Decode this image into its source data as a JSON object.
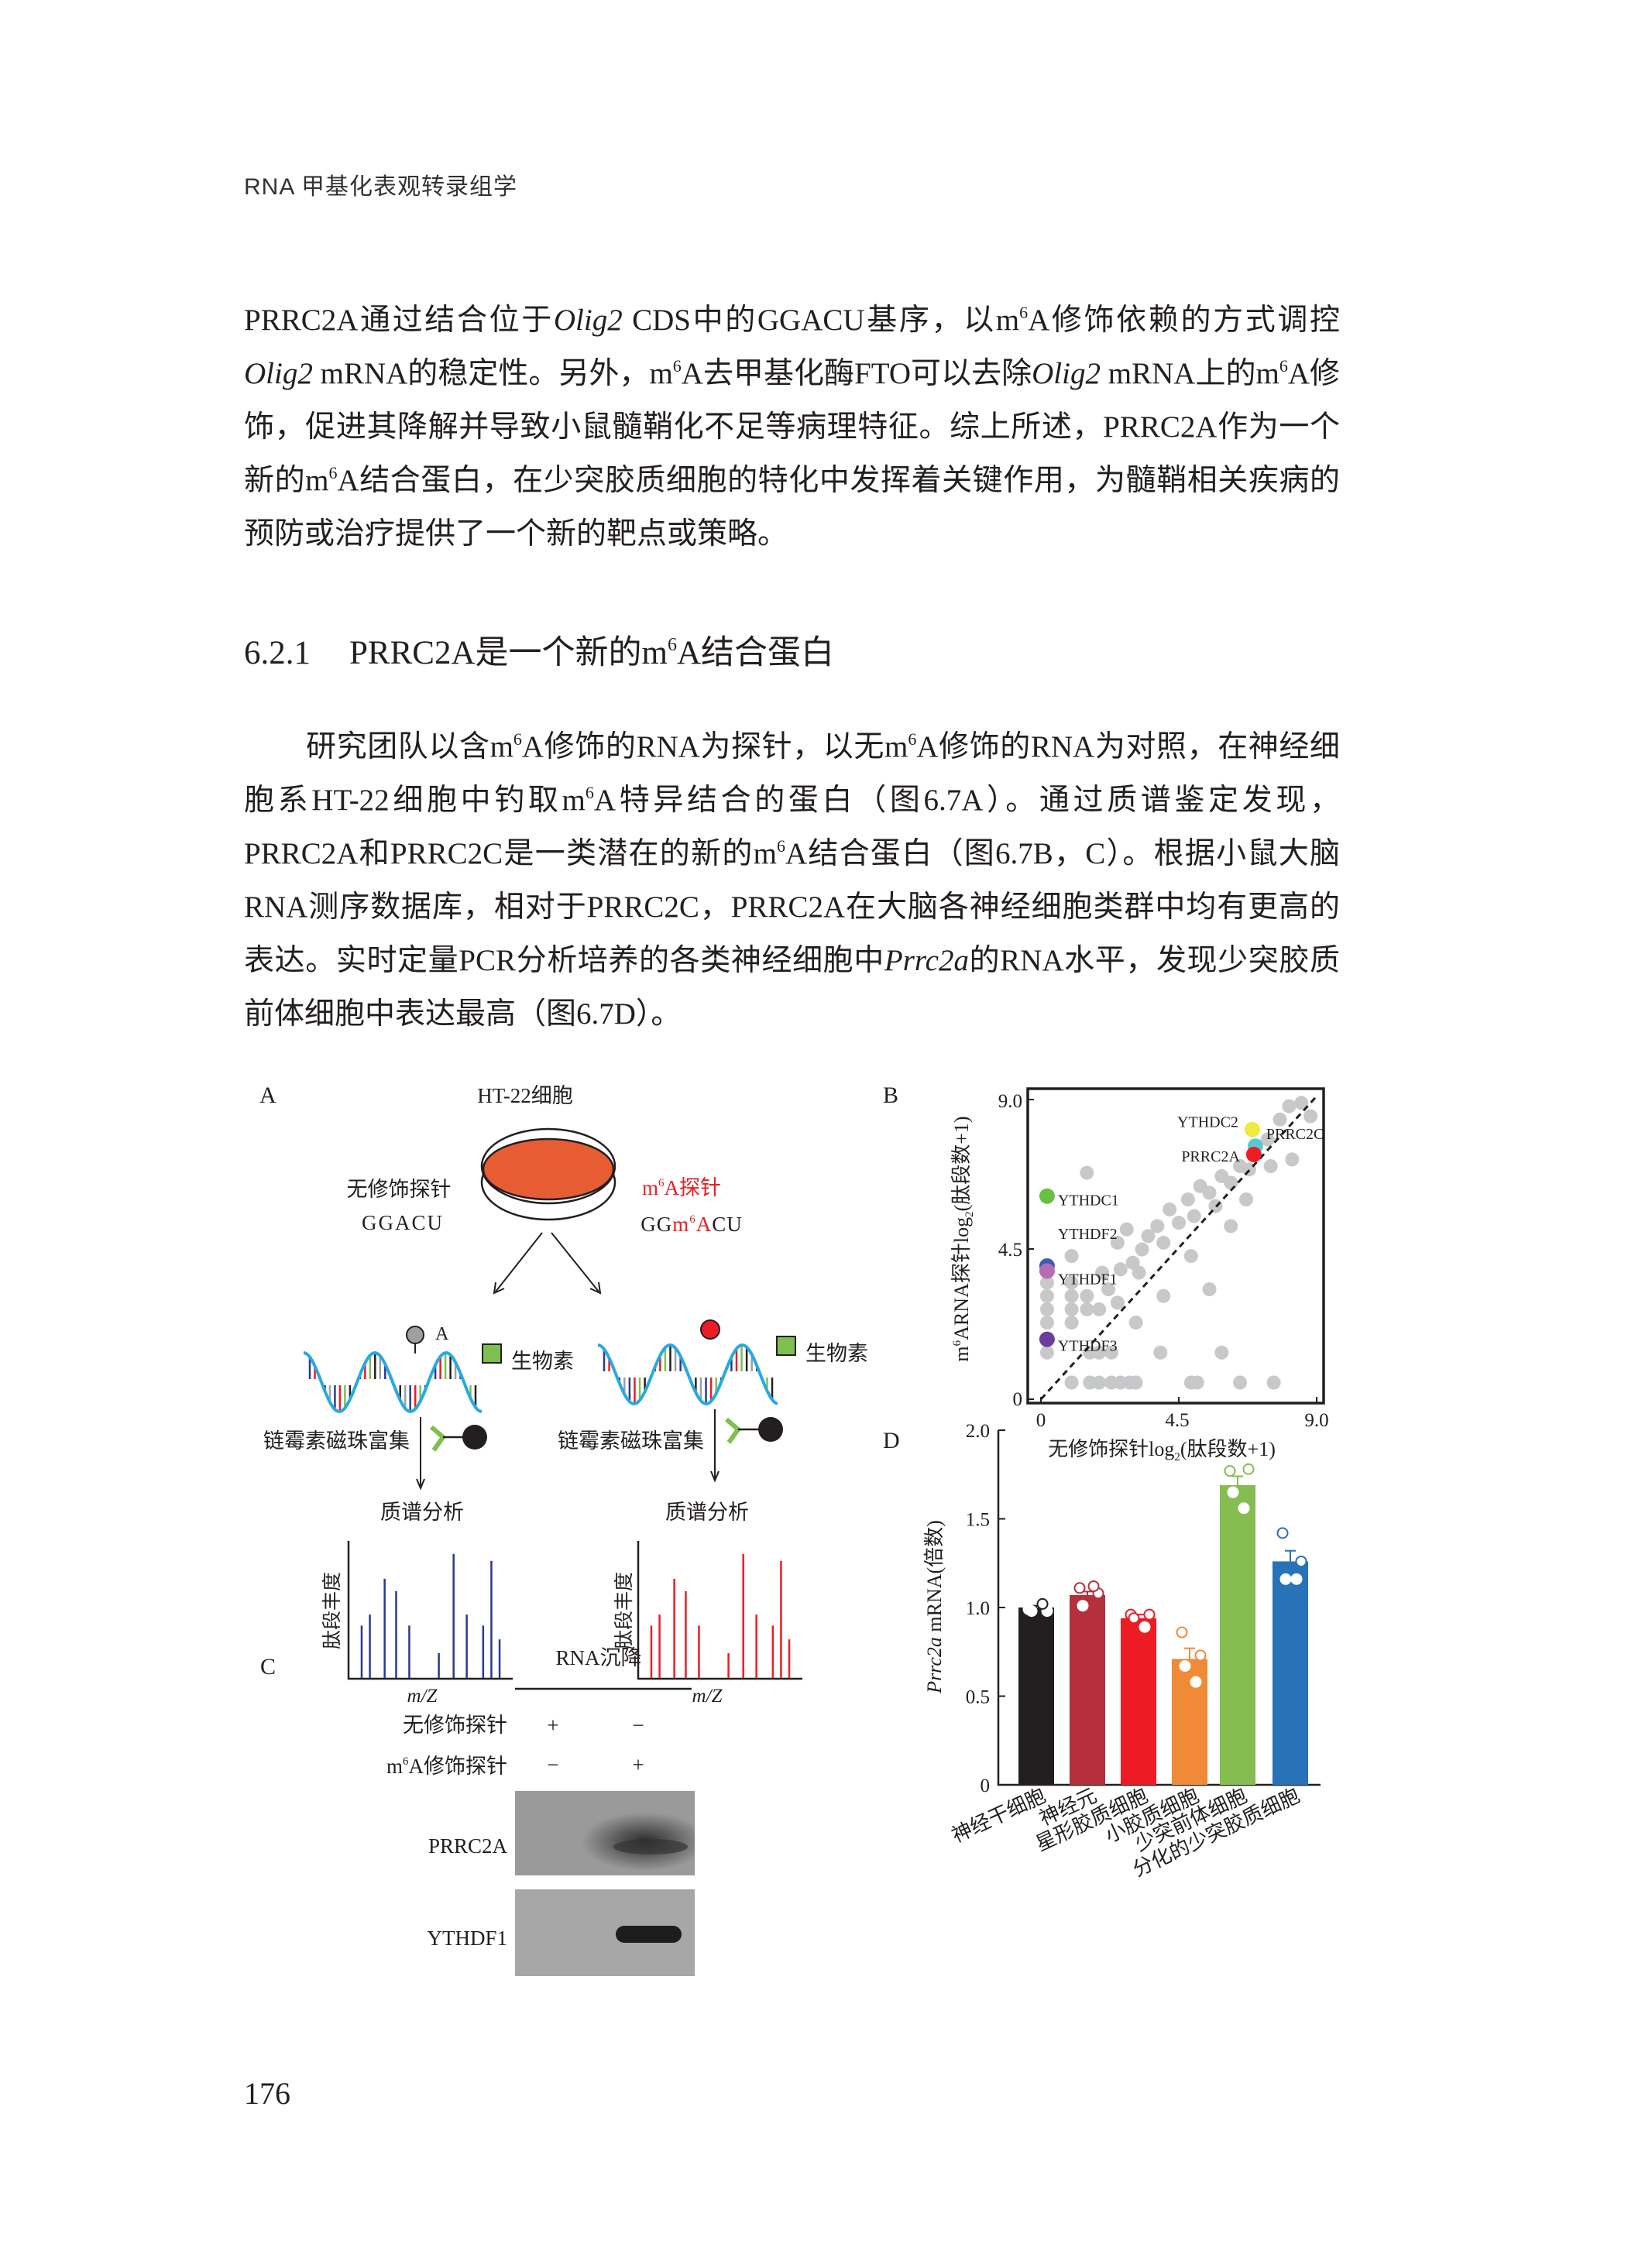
{
  "header": {
    "running_title": "RNA 甲基化表观转录组学"
  },
  "body": {
    "paragraphs": [
      {
        "runs": [
          {
            "t": "PRRC2A通过结合位于"
          },
          {
            "t": "Olig2",
            "s": "it"
          },
          {
            "t": " CDS中的GGACU基序，以m"
          },
          {
            "t": "6",
            "s": "sup"
          },
          {
            "t": "A修饰依赖的方式调控"
          },
          {
            "t": "Olig2",
            "s": "it"
          },
          {
            "t": " mRNA的稳定性。另外，m"
          },
          {
            "t": "6",
            "s": "sup"
          },
          {
            "t": "A去甲基化酶FTO可以去除"
          },
          {
            "t": "Olig2",
            "s": "it"
          },
          {
            "t": " mRNA上的m"
          },
          {
            "t": "6",
            "s": "sup"
          },
          {
            "t": "A修饰，促进其降解并导致小鼠髓鞘化不足等病理特征。综上所述，PRRC2A作为一个新的m"
          },
          {
            "t": "6",
            "s": "sup"
          },
          {
            "t": "A结合蛋白，在少突胶质细胞的特化中发挥着关键作用，为髓鞘相关疾病的预防或治疗提供了一个新的靶点或策略。"
          }
        ]
      },
      {
        "runs": [
          {
            "t": "研究团队以含m"
          },
          {
            "t": "6",
            "s": "sup"
          },
          {
            "t": "A修饰的RNA为探针，以无m"
          },
          {
            "t": "6",
            "s": "sup"
          },
          {
            "t": "A修饰的RNA为对照，在神经细胞系HT-22细胞中钓取m"
          },
          {
            "t": "6",
            "s": "sup"
          },
          {
            "t": "A特异结合的蛋白（图6.7A）。通过质谱鉴定发现，PRRC2A和PRRC2C是一类潜在的新的m"
          },
          {
            "t": "6",
            "s": "sup"
          },
          {
            "t": "A结合蛋白（图6.7B，C）。根据小鼠大脑RNA测序数据库，相对于PRRC2C，PRRC2A在大脑各神经细胞类群中均有更高的表达。实时定量PCR分析培养的各类神经细胞中"
          },
          {
            "t": "Prrc2a",
            "s": "it"
          },
          {
            "t": "的RNA水平，发现少突胶质前体细胞中表达最高（图6.7D）。"
          }
        ]
      }
    ]
  },
  "section": {
    "number": "6.2.1",
    "title_pre": "PRRC2A是一个新的m",
    "title_sup": "6",
    "title_post": "A结合蛋白"
  },
  "figure": {
    "panel_a": {
      "label": "A",
      "cell": "HT-22细胞",
      "left_probe": "无修饰探针",
      "left_seq": "GGACU",
      "right_probe_pre": "m",
      "right_probe_sup": "6",
      "right_probe_post": "A探针",
      "right_seq_pre": "GG",
      "right_seq_m": "m",
      "right_seq_sup": "6",
      "right_seq_a": "A",
      "right_seq_post": "CU",
      "a_label": "A",
      "biotin": "生物素",
      "enrich": "链霉素磁珠富集",
      "ms": "质谱分析",
      "ylabel": "肽段丰度",
      "xlabel": "m/Z",
      "colors": {
        "dish": "#e85c33",
        "biotin": "#7dc04f",
        "m6a": "#ed1c24",
        "left_spectrum": "#2b3990",
        "right_spectrum": "#ed1c24",
        "rna": "#29a9e0"
      }
    },
    "panel_c": {
      "label": "C",
      "header": "RNA沉降",
      "rows": [
        {
          "label": "无修饰探针",
          "lanes": [
            "+",
            "−"
          ]
        },
        {
          "label_pre": "m",
          "label_sup": "6",
          "label_post": "A修饰探针",
          "lanes": [
            "−",
            "+"
          ]
        }
      ],
      "blots": [
        "PRRC2A",
        "YTHDF1"
      ]
    }
  },
  "chart_data": [
    {
      "panel": "B",
      "type": "scatter",
      "xlabel_pre": "无修饰探针log",
      "xlabel_sub": "2",
      "xlabel_post": "(肽段数+1)",
      "ylabel_pre": "m",
      "ylabel_sup": "6",
      "ylabel_mid": "ARNA探针log",
      "ylabel_sub": "2",
      "ylabel_post": "(肽段数+1)",
      "xlim": [
        0,
        9
      ],
      "ylim": [
        0,
        9
      ],
      "xticks": [
        "0",
        "4.5",
        "9.0"
      ],
      "yticks": [
        "0",
        "4.5",
        "9.0"
      ],
      "reference_line": "y = x (dashed)",
      "highlighted": [
        {
          "name": "YTHDC2",
          "x": 6.9,
          "y": 8.1,
          "color": "#f2e940"
        },
        {
          "name": "PRRC2C",
          "x": 7.0,
          "y": 7.6,
          "color": "#5bc8d0"
        },
        {
          "name": "PRRC2A",
          "x": 6.95,
          "y": 7.35,
          "color": "#ed1c24"
        },
        {
          "name": "YTHDC1",
          "x": 0.2,
          "y": 6.1,
          "color": "#6abf45"
        },
        {
          "name": "YTHDF2",
          "x": 0.2,
          "y": 4.0,
          "color": "#3b5db5"
        },
        {
          "name": "YTHDF1",
          "x": 0.2,
          "y": 3.85,
          "color": "#b56cb5"
        },
        {
          "name": "YTHDF3",
          "x": 0.2,
          "y": 1.8,
          "color": "#6a3d9a"
        }
      ],
      "gray_points": [
        [
          0.2,
          3.5
        ],
        [
          0.2,
          3.1
        ],
        [
          0.2,
          2.7
        ],
        [
          0.2,
          2.3
        ],
        [
          0.2,
          1.4
        ],
        [
          1.0,
          0.5
        ],
        [
          1.6,
          0.5
        ],
        [
          1.9,
          0.5
        ],
        [
          2.3,
          0.5
        ],
        [
          2.6,
          0.5
        ],
        [
          2.9,
          0.5
        ],
        [
          3.1,
          0.5
        ],
        [
          4.9,
          0.5
        ],
        [
          5.1,
          0.5
        ],
        [
          6.5,
          0.5
        ],
        [
          7.6,
          0.5
        ],
        [
          1.6,
          1.4
        ],
        [
          1.9,
          1.4
        ],
        [
          2.3,
          1.4
        ],
        [
          3.9,
          1.4
        ],
        [
          5.9,
          1.4
        ],
        [
          1.0,
          2.3
        ],
        [
          1.0,
          2.7
        ],
        [
          1.0,
          3.1
        ],
        [
          1.0,
          3.5
        ],
        [
          1.0,
          4.3
        ],
        [
          1.5,
          3.1
        ],
        [
          1.5,
          2.7
        ],
        [
          1.9,
          2.7
        ],
        [
          2.2,
          3.3
        ],
        [
          2.5,
          2.9
        ],
        [
          2.0,
          3.8
        ],
        [
          2.6,
          3.9
        ],
        [
          3.0,
          4.1
        ],
        [
          3.1,
          2.3
        ],
        [
          3.3,
          4.5
        ],
        [
          3.5,
          4.9
        ],
        [
          3.8,
          5.2
        ],
        [
          4.0,
          4.7
        ],
        [
          4.2,
          5.7
        ],
        [
          4.5,
          5.3
        ],
        [
          4.8,
          6.0
        ],
        [
          5.0,
          5.5
        ],
        [
          5.2,
          6.4
        ],
        [
          5.5,
          6.2
        ],
        [
          5.7,
          5.8
        ],
        [
          5.9,
          6.7
        ],
        [
          6.2,
          6.5
        ],
        [
          6.5,
          7.0
        ],
        [
          6.8,
          6.9
        ],
        [
          7.4,
          7.8
        ],
        [
          7.8,
          8.4
        ],
        [
          8.1,
          8.8
        ],
        [
          8.5,
          8.9
        ],
        [
          8.8,
          8.5
        ],
        [
          7.5,
          7.0
        ],
        [
          8.2,
          7.2
        ],
        [
          6.7,
          6.0
        ],
        [
          4.0,
          3.1
        ],
        [
          3.2,
          3.8
        ],
        [
          5.5,
          3.3
        ],
        [
          2.5,
          4.7
        ],
        [
          1.5,
          6.8
        ],
        [
          4.9,
          4.3
        ],
        [
          6.2,
          5.2
        ],
        [
          2.8,
          5.1
        ]
      ]
    },
    {
      "panel": "D",
      "type": "bar",
      "ylabel_gene": "Prrc2a",
      "ylabel_post": " mRNA(倍数)",
      "ylim": [
        0,
        2.0
      ],
      "yticks": [
        "0",
        "0.5",
        "1.0",
        "1.5",
        "2.0"
      ],
      "categories": [
        "神经干细胞",
        "神经元",
        "星形胶质细胞",
        "小胶质细胞",
        "少突前体细胞",
        "分化的少突胶质细胞"
      ],
      "values": [
        1.0,
        1.07,
        0.94,
        0.71,
        1.69,
        1.26
      ],
      "errors": [
        0.01,
        0.02,
        0.02,
        0.06,
        0.05,
        0.06
      ],
      "points": [
        [
          0.99,
          0.98,
          0.98,
          1.02
        ],
        [
          1.11,
          1.08,
          1.01,
          1.12
        ],
        [
          0.96,
          0.96,
          0.94,
          0.89
        ],
        [
          0.86,
          0.73,
          0.67,
          0.58
        ],
        [
          1.77,
          1.78,
          1.65,
          1.56
        ],
        [
          1.42,
          1.26,
          1.16,
          1.16
        ]
      ],
      "colors": [
        "#231f20",
        "#b5303a",
        "#ed1c24",
        "#f08a36",
        "#85bd50",
        "#2872b8"
      ]
    }
  ],
  "page": {
    "number": "176"
  }
}
